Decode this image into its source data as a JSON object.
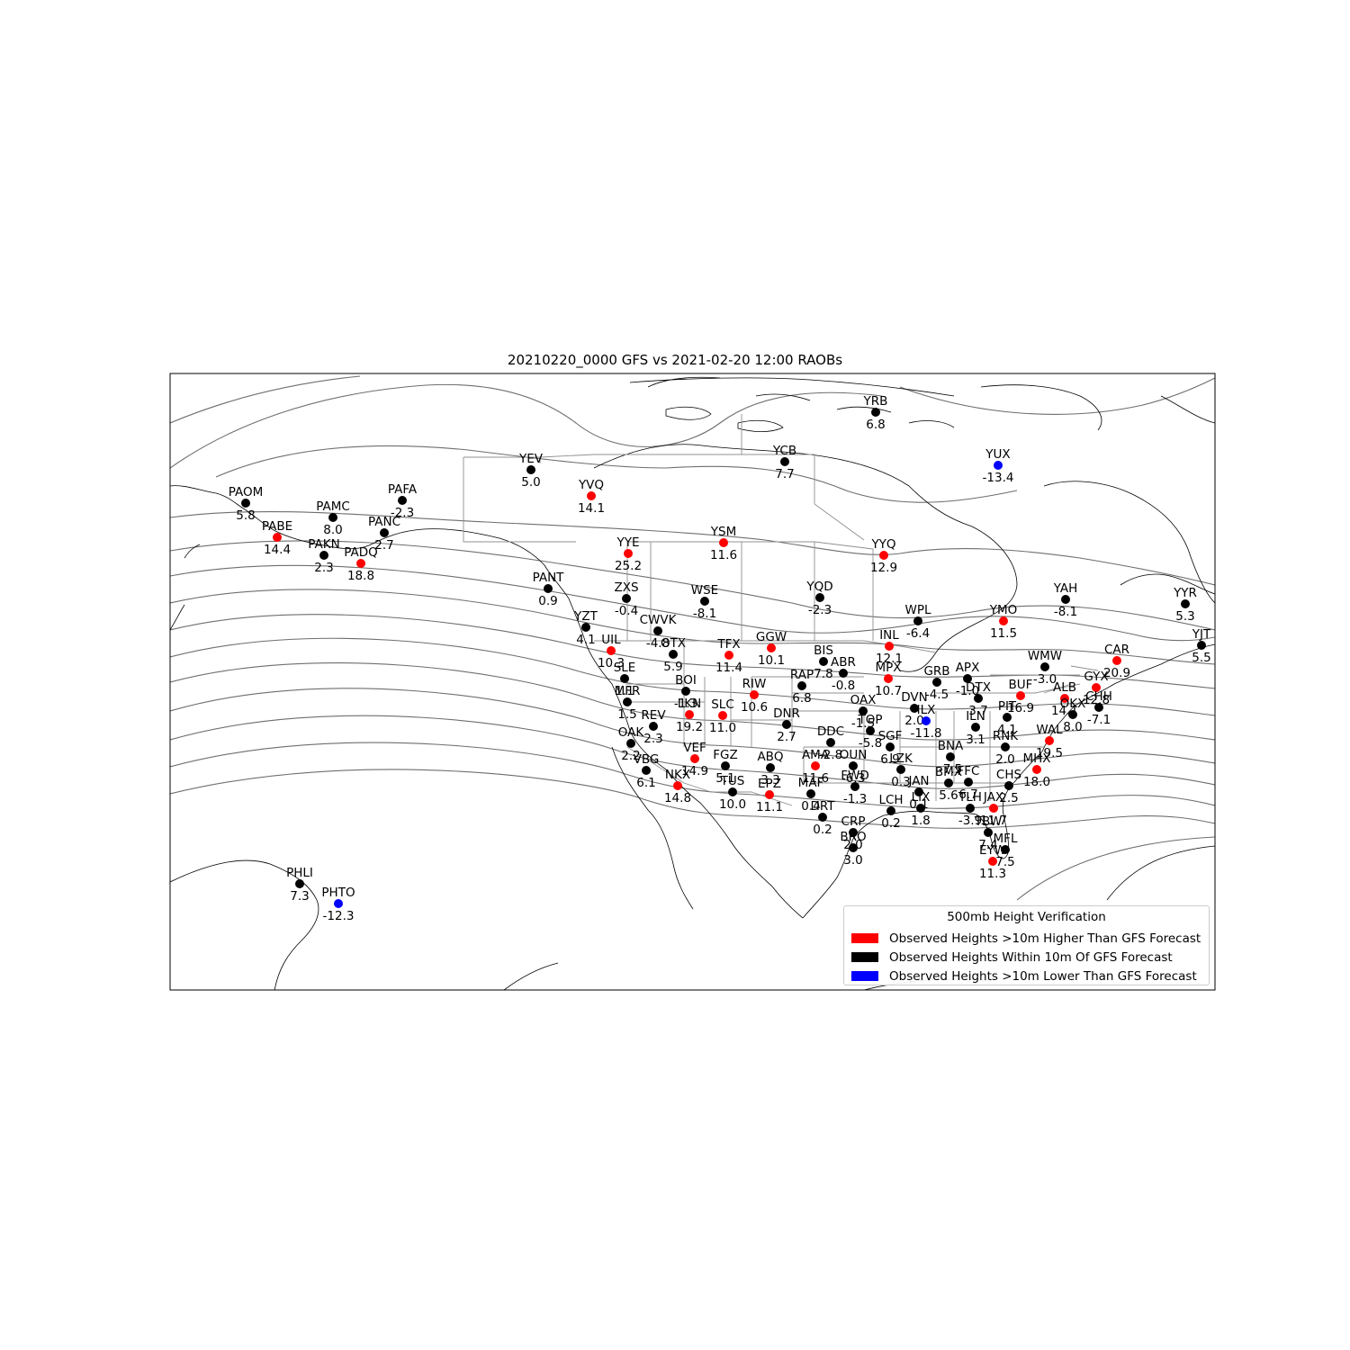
{
  "title": "20210220_0000 GFS vs 2021-02-20 12:00 RAOBs",
  "legend": {
    "title": "500mb Height Verification",
    "items": [
      {
        "label": "Observed Heights >10m Higher Than GFS Forecast",
        "color": "#ff0000"
      },
      {
        "label": "Observed Heights Within 10m Of GFS Forecast",
        "color": "#000000"
      },
      {
        "label": "Observed Heights >10m Lower Than GFS Forecast",
        "color": "#0000ff"
      }
    ]
  },
  "colors": {
    "higher": "#ff0000",
    "within": "#000000",
    "lower": "#0000ff",
    "contour": "#6e6e6e"
  },
  "stations": [
    {
      "id": "YRB",
      "value": "6.8",
      "cat": "within"
    },
    {
      "id": "YUX",
      "value": "-13.4",
      "cat": "lower"
    },
    {
      "id": "YCB",
      "value": "7.7",
      "cat": "within"
    },
    {
      "id": "YEV",
      "value": "5.0",
      "cat": "within"
    },
    {
      "id": "YVQ",
      "value": "14.1",
      "cat": "higher"
    },
    {
      "id": "PAFA",
      "value": "-2.3",
      "cat": "within"
    },
    {
      "id": "PAOM",
      "value": "5.8",
      "cat": "within"
    },
    {
      "id": "PAMC",
      "value": "8.0",
      "cat": "within"
    },
    {
      "id": "PANC",
      "value": "2.7",
      "cat": "within"
    },
    {
      "id": "PABE",
      "value": "14.4",
      "cat": "higher"
    },
    {
      "id": "PAKN",
      "value": "2.3",
      "cat": "within"
    },
    {
      "id": "PADQ",
      "value": "18.8",
      "cat": "higher"
    },
    {
      "id": "YYE",
      "value": "25.2",
      "cat": "higher"
    },
    {
      "id": "YSM",
      "value": "11.6",
      "cat": "higher"
    },
    {
      "id": "YYQ",
      "value": "12.9",
      "cat": "higher"
    },
    {
      "id": "PANT",
      "value": "0.9",
      "cat": "within"
    },
    {
      "id": "ZXS",
      "value": "-0.4",
      "cat": "within"
    },
    {
      "id": "WSE",
      "value": "-8.1",
      "cat": "within"
    },
    {
      "id": "YQD",
      "value": "-2.3",
      "cat": "within"
    },
    {
      "id": "YAH",
      "value": "-8.1",
      "cat": "within"
    },
    {
      "id": "YYR",
      "value": "5.3",
      "cat": "within"
    },
    {
      "id": "WPL",
      "value": "-6.4",
      "cat": "within"
    },
    {
      "id": "YMO",
      "value": "11.5",
      "cat": "higher"
    },
    {
      "id": "YZT",
      "value": "4.1",
      "cat": "within"
    },
    {
      "id": "CWVK",
      "value": "-4.8",
      "cat": "within"
    },
    {
      "id": "YJT",
      "value": "5.5",
      "cat": "within"
    },
    {
      "id": "UIL",
      "value": "10.3",
      "cat": "higher"
    },
    {
      "id": "OTX",
      "value": "5.9",
      "cat": "within"
    },
    {
      "id": "TFX",
      "value": "11.4",
      "cat": "higher"
    },
    {
      "id": "GGW",
      "value": "10.1",
      "cat": "higher"
    },
    {
      "id": "INL",
      "value": "12.1",
      "cat": "higher"
    },
    {
      "id": "BIS",
      "value": "7.8",
      "cat": "within"
    },
    {
      "id": "ABR",
      "value": "-0.8",
      "cat": "within"
    },
    {
      "id": "WMW",
      "value": "-3.0",
      "cat": "within"
    },
    {
      "id": "CAR",
      "value": "20.9",
      "cat": "higher"
    },
    {
      "id": "SLE",
      "value": "1.1",
      "cat": "within"
    },
    {
      "id": "BOI",
      "value": "-1.3",
      "cat": "within"
    },
    {
      "id": "MPX",
      "value": "10.7",
      "cat": "higher"
    },
    {
      "id": "GRB",
      "value": "-4.5",
      "cat": "within"
    },
    {
      "id": "APX",
      "value": "-1.0",
      "cat": "within"
    },
    {
      "id": "GYX",
      "value": "12.8",
      "cat": "higher"
    },
    {
      "id": "RAP",
      "value": "6.8",
      "cat": "within"
    },
    {
      "id": "RIW",
      "value": "10.6",
      "cat": "higher"
    },
    {
      "id": "DTX",
      "value": "3.7",
      "cat": "within"
    },
    {
      "id": "BUF",
      "value": "16.9",
      "cat": "higher"
    },
    {
      "id": "ALB",
      "value": "14.1",
      "cat": "higher"
    },
    {
      "id": "MFR",
      "value": "1.5",
      "cat": "within"
    },
    {
      "id": "LKN",
      "value": "19.2",
      "cat": "higher"
    },
    {
      "id": "CHH",
      "value": "-7.1",
      "cat": "within"
    },
    {
      "id": "OKX",
      "value": "8.0",
      "cat": "within"
    },
    {
      "id": "OAX",
      "value": "-1.5",
      "cat": "within"
    },
    {
      "id": "DVN",
      "value": "2.0",
      "cat": "within"
    },
    {
      "id": "SLC",
      "value": "11.0",
      "cat": "higher"
    },
    {
      "id": "REV",
      "value": "2.3",
      "cat": "within"
    },
    {
      "id": "DNR",
      "value": "2.7",
      "cat": "within"
    },
    {
      "id": "ILX",
      "value": "-11.8",
      "cat": "lower"
    },
    {
      "id": "PIT",
      "value": "4.1",
      "cat": "within"
    },
    {
      "id": "TOP",
      "value": "-5.8",
      "cat": "within"
    },
    {
      "id": "ILN",
      "value": "3.1",
      "cat": "within"
    },
    {
      "id": "WAL",
      "value": "19.5",
      "cat": "higher"
    },
    {
      "id": "DDC",
      "value": "-2.8",
      "cat": "within"
    },
    {
      "id": "SGF",
      "value": "6.9",
      "cat": "within"
    },
    {
      "id": "OAK",
      "value": "2.2",
      "cat": "within"
    },
    {
      "id": "RNK",
      "value": "2.0",
      "cat": "within"
    },
    {
      "id": "BNA",
      "value": "-7.5",
      "cat": "within"
    },
    {
      "id": "VEF",
      "value": "14.9",
      "cat": "higher"
    },
    {
      "id": "FGZ",
      "value": "5.1",
      "cat": "within"
    },
    {
      "id": "ABQ",
      "value": "3.3",
      "cat": "within"
    },
    {
      "id": "AMA",
      "value": "11.6",
      "cat": "higher"
    },
    {
      "id": "OUN",
      "value": "-6.3",
      "cat": "within"
    },
    {
      "id": "LZK",
      "value": "0.3",
      "cat": "within"
    },
    {
      "id": "MHX",
      "value": "18.0",
      "cat": "higher"
    },
    {
      "id": "VBG",
      "value": "6.1",
      "cat": "within"
    },
    {
      "id": "BMX",
      "value": "5.6",
      "cat": "within"
    },
    {
      "id": "FFC",
      "value": "6.7",
      "cat": "within"
    },
    {
      "id": "NKX",
      "value": "14.8",
      "cat": "higher"
    },
    {
      "id": "TUS",
      "value": "10.0",
      "cat": "within"
    },
    {
      "id": "EPZ",
      "value": "11.1",
      "cat": "higher"
    },
    {
      "id": "FWD",
      "value": "-1.3",
      "cat": "within"
    },
    {
      "id": "JAN",
      "value": "0.1",
      "cat": "within"
    },
    {
      "id": "CHS",
      "value": "2.5",
      "cat": "within"
    },
    {
      "id": "MAF",
      "value": "0.4",
      "cat": "within"
    },
    {
      "id": "DRT",
      "value": "0.2",
      "cat": "within"
    },
    {
      "id": "LCH",
      "value": "0.2",
      "cat": "within"
    },
    {
      "id": "LIX",
      "value": "1.8",
      "cat": "within"
    },
    {
      "id": "TLH",
      "value": "-3.9",
      "cat": "within"
    },
    {
      "id": "JAX",
      "value": "11.7",
      "cat": "higher"
    },
    {
      "id": "CRP",
      "value": "2.0",
      "cat": "within"
    },
    {
      "id": "TBW",
      "value": "7.4",
      "cat": "within"
    },
    {
      "id": "BRO",
      "value": "3.0",
      "cat": "within"
    },
    {
      "id": "MFL",
      "value": "7.5",
      "cat": "within"
    },
    {
      "id": "EYW",
      "value": "11.3",
      "cat": "higher"
    },
    {
      "id": "PHLI",
      "value": "7.3",
      "cat": "within"
    },
    {
      "id": "PHTO",
      "value": "-12.3",
      "cat": "lower"
    }
  ]
}
